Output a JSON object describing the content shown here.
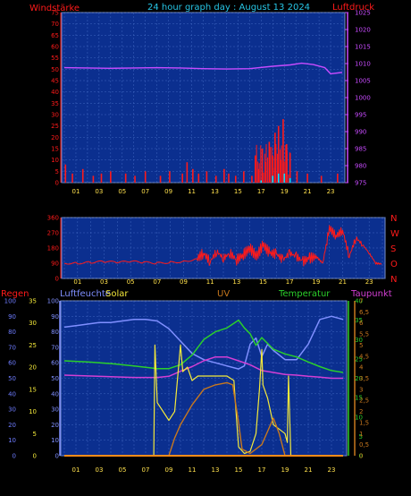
{
  "header": {
    "title": "24 hour graph day : August 13 2024",
    "left_label": "Windstärke",
    "right_label": "Luftdruck"
  },
  "panel3_labels": {
    "regen": "Regen",
    "luftfeuchte": "Luftfeuchte",
    "solar": "Solar",
    "uv": "UV",
    "temperatur": "Temperatur",
    "taupunkt": "Taupunkt"
  },
  "colors": {
    "panel_bg": "#0b2f8f",
    "wind": "#ff1a1a",
    "gust": "#00e5ff",
    "pressure": "#c84bff",
    "direction": "#ff1a1a",
    "humidity": "#7f8fff",
    "solar": "#f4e93a",
    "uv": "#c8781e",
    "temperature": "#2bd02b",
    "dewpoint": "#d43fd4",
    "rain": "#ff8c1a"
  },
  "chart_data": [
    {
      "type": "bar",
      "title": "Windstärke",
      "x_ticks": [
        "01",
        "03",
        "05",
        "07",
        "09",
        "11",
        "13",
        "15",
        "17",
        "19",
        "21",
        "23"
      ],
      "left_axis": {
        "label": "Windstärke",
        "ticks": [
          "75",
          "70",
          "65",
          "60",
          "55",
          "50",
          "45",
          "40",
          "35",
          "30",
          "25",
          "20",
          "15",
          "10",
          "5",
          "0"
        ],
        "ylim": [
          0,
          75
        ]
      },
      "right_axis": {
        "label": "Luftdruck",
        "ticks": [
          "1025",
          "1020",
          "1015",
          "1010",
          "1005",
          "1000",
          "995",
          "990",
          "985",
          "980",
          "975"
        ],
        "ylim": [
          975,
          1025
        ]
      },
      "series": [
        {
          "name": "wind",
          "x": [
            0.1,
            0.7,
            1.6,
            2.5,
            3.2,
            4.0,
            5.3,
            6.1,
            7.0,
            8.3,
            9.1,
            10.2,
            10.6,
            11.1,
            11.6,
            12.3,
            13.1,
            13.8,
            14.2,
            14.8,
            15.5,
            16.2,
            16.5,
            16.8,
            17.1,
            17.4,
            17.7,
            18.0,
            18.2,
            18.5,
            18.7,
            18.9,
            19.2,
            19.5,
            20.1,
            21.0,
            22.2,
            23.6
          ],
          "values": [
            8,
            4,
            6,
            3,
            4,
            5,
            4,
            3,
            5,
            3,
            5,
            4,
            9,
            6,
            4,
            5,
            3,
            6,
            4,
            3,
            5,
            3,
            12,
            6,
            15,
            9,
            18,
            12,
            22,
            25,
            10,
            28,
            17,
            13,
            5,
            4,
            3,
            4
          ]
        },
        {
          "name": "gust",
          "x": [
            17.0,
            18.0,
            18.5,
            19.0,
            19.5
          ],
          "values": [
            1,
            3,
            4,
            4,
            2
          ]
        },
        {
          "name": "Luftdruck",
          "x": [
            0,
            2,
            4,
            6,
            8,
            10,
            12,
            14,
            16,
            18,
            19.5,
            20.5,
            21.5,
            22.5,
            23,
            24
          ],
          "values": [
            1008.8,
            1008.7,
            1008.6,
            1008.7,
            1008.8,
            1008.7,
            1008.5,
            1008.4,
            1008.5,
            1009.2,
            1009.6,
            1010.1,
            1009.7,
            1008.8,
            1007.0,
            1007.4
          ]
        }
      ]
    },
    {
      "type": "line",
      "title": "",
      "x_ticks": [
        "01",
        "03",
        "05",
        "07",
        "09",
        "11",
        "13",
        "15",
        "17",
        "19",
        "21",
        "23"
      ],
      "left_axis": {
        "ticks": [
          "360",
          "270",
          "180",
          "90",
          "0"
        ],
        "ylim": [
          0,
          360
        ]
      },
      "right_axis": {
        "ticks": [
          "N",
          "W",
          "S",
          "O",
          "N"
        ]
      },
      "series": [
        {
          "name": "direction",
          "x": [
            0,
            1,
            2,
            3,
            4,
            5,
            6,
            7,
            8,
            9,
            10,
            10.5,
            11,
            11.5,
            12,
            12.5,
            13,
            13.5,
            14,
            14.5,
            15,
            15.5,
            16,
            16.5,
            17,
            17.5,
            18,
            18.5,
            19,
            19.5,
            20,
            20.5,
            21,
            21.5,
            22,
            22.5,
            23,
            23.5,
            24
          ],
          "values": [
            90,
            90,
            95,
            100,
            95,
            100,
            95,
            90,
            95,
            100,
            115,
            150,
            100,
            160,
            120,
            150,
            110,
            140,
            180,
            130,
            200,
            150,
            145,
            110,
            150,
            130,
            100,
            120,
            130,
            90,
            300,
            250,
            285,
            130,
            240,
            200,
            150,
            90,
            85
          ]
        }
      ]
    },
    {
      "type": "line",
      "title": "",
      "x_ticks": [
        "01",
        "03",
        "05",
        "07",
        "09",
        "11",
        "13",
        "15",
        "17",
        "19",
        "21",
        "23"
      ],
      "axes": {
        "regen": [
          "100",
          "90",
          "80",
          "70",
          "60",
          "50",
          "40",
          "30",
          "20",
          "10",
          "0"
        ],
        "luftfeuchte": [
          "100",
          "90",
          "80",
          "70",
          "60",
          "50",
          "40",
          "30",
          "20",
          "10",
          "0"
        ],
        "solar": [
          "35",
          "30",
          "25",
          "20",
          "15",
          "10",
          "5",
          "0"
        ],
        "temperatur": [
          "40",
          "35",
          "30",
          "25",
          "20",
          "15",
          "10",
          "5",
          "0"
        ],
        "uv": [
          "7",
          "6,5",
          "6",
          "5,5",
          "5",
          "4,5",
          "4",
          "3,5",
          "3",
          "2,5",
          "2",
          "1,5",
          "1",
          "0,5",
          "0"
        ]
      },
      "series": [
        {
          "name": "Luftfeuchte",
          "x": [
            0,
            1,
            2,
            3,
            4,
            5,
            6,
            7,
            8,
            9,
            10,
            11,
            12,
            13,
            14,
            15,
            15.5,
            16,
            16.5,
            17,
            17.5,
            18,
            19,
            20,
            21,
            22,
            23,
            24
          ],
          "values": [
            83,
            84,
            85,
            86,
            86,
            87,
            88,
            88,
            87,
            82,
            74,
            66,
            62,
            60,
            58,
            56,
            58,
            72,
            76,
            64,
            72,
            68,
            62,
            62,
            72,
            88,
            90,
            88
          ]
        },
        {
          "name": "Temperatur",
          "x": [
            0,
            2,
            4,
            6,
            8,
            9,
            10,
            11,
            12,
            13,
            14,
            15,
            15.5,
            16,
            16.5,
            17,
            18,
            19,
            20,
            21,
            22,
            23,
            24
          ],
          "values": [
            24.5,
            24.2,
            23.8,
            23.2,
            22.5,
            22.5,
            23.5,
            26,
            30,
            32,
            33,
            35,
            33,
            31.5,
            28.5,
            30.5,
            27.5,
            26.3,
            25.5,
            24.2,
            23,
            22,
            21.5
          ]
        },
        {
          "name": "Taupunkt",
          "x": [
            0,
            2,
            4,
            6,
            8,
            9,
            10,
            11,
            12,
            13,
            14,
            15,
            16,
            17,
            18,
            19,
            20,
            21,
            22,
            23,
            24
          ],
          "values": [
            20.8,
            20.6,
            20.4,
            20.2,
            20.2,
            20.5,
            21.8,
            23,
            24.5,
            25.5,
            25.5,
            24.5,
            23.5,
            22,
            21.5,
            21,
            20.8,
            20.5,
            20.3,
            20,
            20
          ]
        },
        {
          "name": "Solar",
          "x": [
            0,
            7.7,
            7.8,
            8.0,
            9,
            9.5,
            10.0,
            10.2,
            10.6,
            11,
            11.5,
            12,
            13,
            14,
            14.6,
            14.7,
            15,
            15.5,
            16,
            16.5,
            16.8,
            17.0,
            17.1,
            17.5,
            18,
            18.5,
            19,
            19.2,
            19.3,
            19.5,
            24
          ],
          "values": [
            0,
            0,
            25,
            12,
            8,
            10,
            25,
            19,
            20,
            17,
            18,
            18,
            18,
            18,
            17,
            13,
            2,
            0.5,
            1,
            5,
            15,
            24,
            16,
            13,
            7,
            6,
            5,
            3,
            18,
            0,
            0
          ]
        },
        {
          "name": "UV",
          "x": [
            0,
            9.0,
            9.5,
            10,
            11,
            12,
            13,
            14,
            14.5,
            15,
            15.3,
            16,
            17,
            18,
            18.5,
            19,
            24
          ],
          "values": [
            0,
            0,
            0.8,
            1.4,
            2.3,
            3.0,
            3.2,
            3.3,
            3.2,
            1.5,
            0.3,
            0.1,
            0.5,
            1.7,
            1.0,
            0,
            0
          ]
        },
        {
          "name": "Regen",
          "x": [
            0,
            24
          ],
          "values": [
            0,
            0
          ]
        }
      ]
    }
  ]
}
